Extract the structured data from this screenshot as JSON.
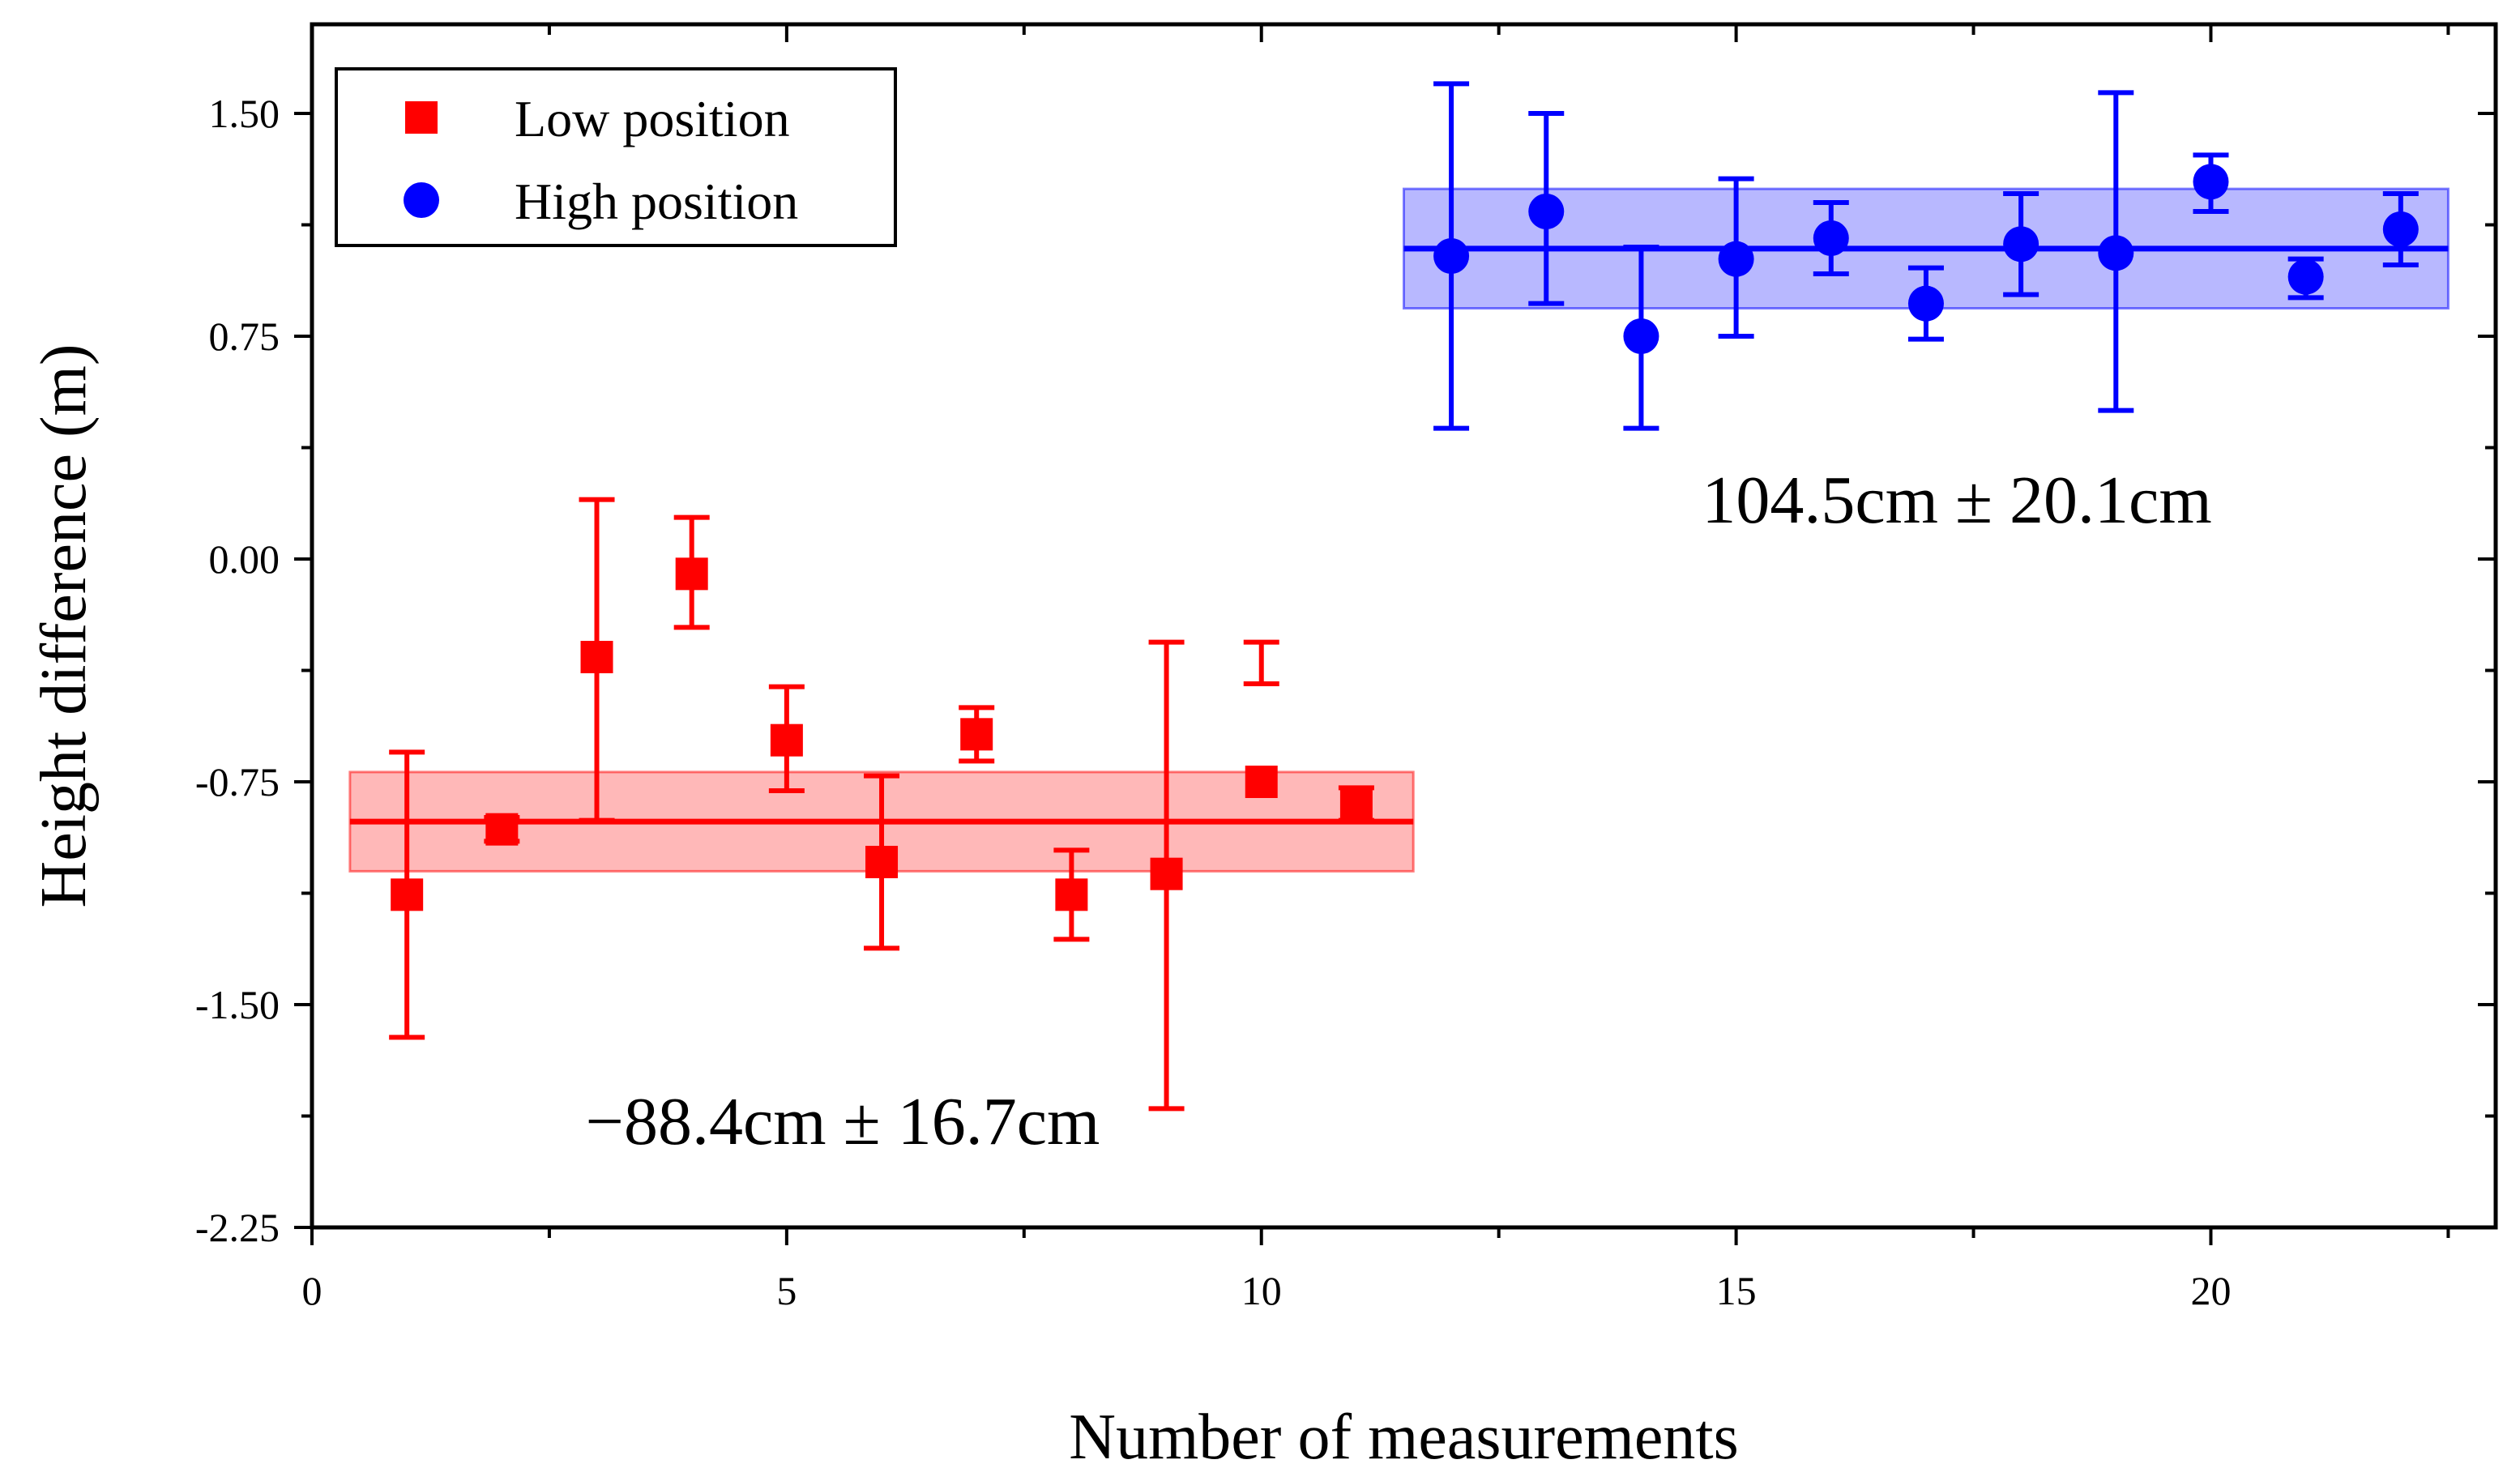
{
  "chart_data": {
    "type": "scatter",
    "xlabel": "Number of measurements",
    "ylabel": "Height difference (m)",
    "xlim": [
      0,
      23
    ],
    "ylim": [
      -2.25,
      1.8
    ],
    "xticks": [
      0,
      5,
      10,
      15,
      20
    ],
    "xtick_labels": [
      "0",
      "5",
      "10",
      "15",
      "20"
    ],
    "yticks": [
      -2.25,
      -1.5,
      -0.75,
      0,
      0.75,
      1.5
    ],
    "ytick_labels": [
      "-2.25",
      "-1.50",
      "-0.75",
      "0.00",
      "0.75",
      "1.50"
    ],
    "grid": false,
    "legend_position": "top-left",
    "series": [
      {
        "name": "Low position",
        "color": "#ff0000",
        "marker": "square",
        "x": [
          1,
          2,
          3,
          4,
          5,
          6,
          7,
          8,
          9,
          10,
          11
        ],
        "y": [
          -1.13,
          -0.91,
          -0.33,
          -0.05,
          -0.61,
          -1.02,
          -0.59,
          -1.13,
          -1.06,
          -0.75,
          -0.83
        ],
        "err_low": [
          -1.61,
          -0.95,
          -0.88,
          -0.23,
          -0.78,
          -1.31,
          -0.68,
          -1.28,
          -1.85,
          -0.28,
          -0.88
        ],
        "err_high": [
          -0.65,
          -0.87,
          0.2,
          0.14,
          -0.43,
          -0.73,
          -0.5,
          -0.98,
          -0.28,
          -0.42,
          -0.77
        ],
        "mean": -0.884,
        "band": [
          -1.051,
          -0.717
        ],
        "band_x": [
          0.4,
          11.6
        ],
        "annotation": "−88.4cm ± 16.7cm"
      },
      {
        "name": "High position",
        "color": "#0000ff",
        "marker": "circle",
        "x": [
          12,
          13,
          14,
          15,
          16,
          17,
          18,
          19,
          20,
          21,
          22
        ],
        "y": [
          1.02,
          1.17,
          0.75,
          1.01,
          1.08,
          0.86,
          1.06,
          1.03,
          1.27,
          0.95,
          1.11
        ],
        "err_low": [
          0.44,
          0.86,
          0.44,
          0.75,
          0.96,
          0.74,
          0.89,
          0.5,
          1.17,
          0.88,
          0.99
        ],
        "err_high": [
          1.6,
          1.5,
          1.05,
          1.28,
          1.2,
          0.98,
          1.23,
          1.57,
          1.36,
          1.01,
          1.23
        ],
        "mean": 1.045,
        "band": [
          0.844,
          1.246
        ],
        "band_x": [
          11.5,
          22.5
        ],
        "annotation": "104.5cm ± 20.1cm"
      }
    ]
  }
}
